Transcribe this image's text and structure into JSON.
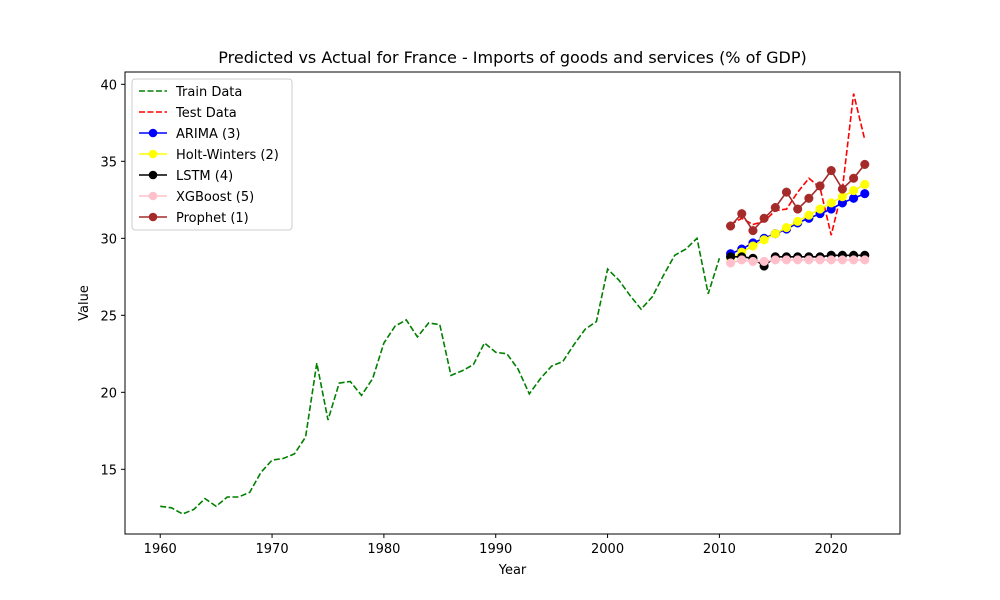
{
  "chart_data": {
    "type": "line",
    "title": "Predicted vs Actual for France - Imports of goods and services (% of GDP)",
    "xlabel": "Year",
    "ylabel": "Value",
    "xlim": [
      1956.85,
      2026.15
    ],
    "ylim": [
      10.8,
      40.8
    ],
    "xticks": [
      1960,
      1970,
      1980,
      1990,
      2000,
      2010,
      2020
    ],
    "yticks": [
      15,
      20,
      25,
      30,
      35,
      40
    ],
    "legend_position": "upper-left",
    "grid": false,
    "series": [
      {
        "name": "Train Data",
        "color": "#008000",
        "style": "dashed",
        "marker": false,
        "x": [
          1960,
          1961,
          1962,
          1963,
          1964,
          1965,
          1966,
          1967,
          1968,
          1969,
          1970,
          1971,
          1972,
          1973,
          1974,
          1975,
          1976,
          1977,
          1978,
          1979,
          1980,
          1981,
          1982,
          1983,
          1984,
          1985,
          1986,
          1987,
          1988,
          1989,
          1990,
          1991,
          1992,
          1993,
          1994,
          1995,
          1996,
          1997,
          1998,
          1999,
          2000,
          2001,
          2002,
          2003,
          2004,
          2005,
          2006,
          2007,
          2008,
          2009,
          2010
        ],
        "y": [
          12.6,
          12.5,
          12.1,
          12.4,
          13.1,
          12.6,
          13.2,
          13.2,
          13.5,
          14.8,
          15.6,
          15.7,
          16.0,
          17.1,
          21.9,
          18.2,
          20.6,
          20.7,
          19.8,
          20.9,
          23.2,
          24.3,
          24.7,
          23.6,
          24.5,
          24.4,
          21.1,
          21.4,
          21.8,
          23.2,
          22.6,
          22.5,
          21.5,
          19.9,
          20.9,
          21.7,
          22.0,
          23.1,
          24.1,
          24.6,
          28.0,
          27.3,
          26.3,
          25.4,
          26.2,
          27.6,
          28.9,
          29.3,
          30.0,
          26.4,
          28.7
        ]
      },
      {
        "name": "Test Data",
        "color": "#ff0000",
        "style": "dashed",
        "marker": false,
        "x": [
          2011,
          2012,
          2013,
          2014,
          2015,
          2016,
          2017,
          2018,
          2019,
          2020,
          2021,
          2022,
          2023
        ],
        "y": [
          30.9,
          31.3,
          30.9,
          31.1,
          31.8,
          31.9,
          33.0,
          33.9,
          33.3,
          30.2,
          33.2,
          39.4,
          36.4
        ]
      },
      {
        "name": "ARIMA (3)",
        "color": "#0000ff",
        "style": "solid",
        "marker": true,
        "x": [
          2011,
          2012,
          2013,
          2014,
          2015,
          2016,
          2017,
          2018,
          2019,
          2020,
          2021,
          2022,
          2023
        ],
        "y": [
          29.0,
          29.3,
          29.7,
          30.0,
          30.3,
          30.6,
          31.0,
          31.3,
          31.6,
          31.9,
          32.3,
          32.6,
          32.9
        ]
      },
      {
        "name": "Holt-Winters (2)",
        "color": "#ffff00",
        "style": "solid",
        "marker": true,
        "x": [
          2011,
          2012,
          2013,
          2014,
          2015,
          2016,
          2017,
          2018,
          2019,
          2020,
          2021,
          2022,
          2023
        ],
        "y": [
          28.7,
          29.1,
          29.5,
          29.9,
          30.3,
          30.7,
          31.1,
          31.5,
          31.9,
          32.3,
          32.7,
          33.1,
          33.5
        ]
      },
      {
        "name": "LSTM (4)",
        "color": "#000000",
        "style": "solid",
        "marker": true,
        "x": [
          2011,
          2012,
          2013,
          2014,
          2015,
          2016,
          2017,
          2018,
          2019,
          2020,
          2021,
          2022,
          2023
        ],
        "y": [
          28.8,
          28.8,
          28.7,
          28.2,
          28.8,
          28.8,
          28.8,
          28.8,
          28.8,
          28.9,
          28.9,
          28.9,
          28.9
        ]
      },
      {
        "name": "XGBoost (5)",
        "color": "#ffc0cb",
        "style": "solid",
        "marker": true,
        "x": [
          2011,
          2012,
          2013,
          2014,
          2015,
          2016,
          2017,
          2018,
          2019,
          2020,
          2021,
          2022,
          2023
        ],
        "y": [
          28.4,
          28.6,
          28.5,
          28.5,
          28.6,
          28.6,
          28.6,
          28.6,
          28.6,
          28.6,
          28.6,
          28.6,
          28.6
        ]
      },
      {
        "name": "Prophet (1)",
        "color": "#a52a2a",
        "style": "solid",
        "marker": true,
        "x": [
          2011,
          2012,
          2013,
          2014,
          2015,
          2016,
          2017,
          2018,
          2019,
          2020,
          2021,
          2022,
          2023
        ],
        "y": [
          30.8,
          31.6,
          30.5,
          31.3,
          32.0,
          33.0,
          31.9,
          32.6,
          33.4,
          34.4,
          33.2,
          33.9,
          34.8
        ]
      }
    ]
  }
}
